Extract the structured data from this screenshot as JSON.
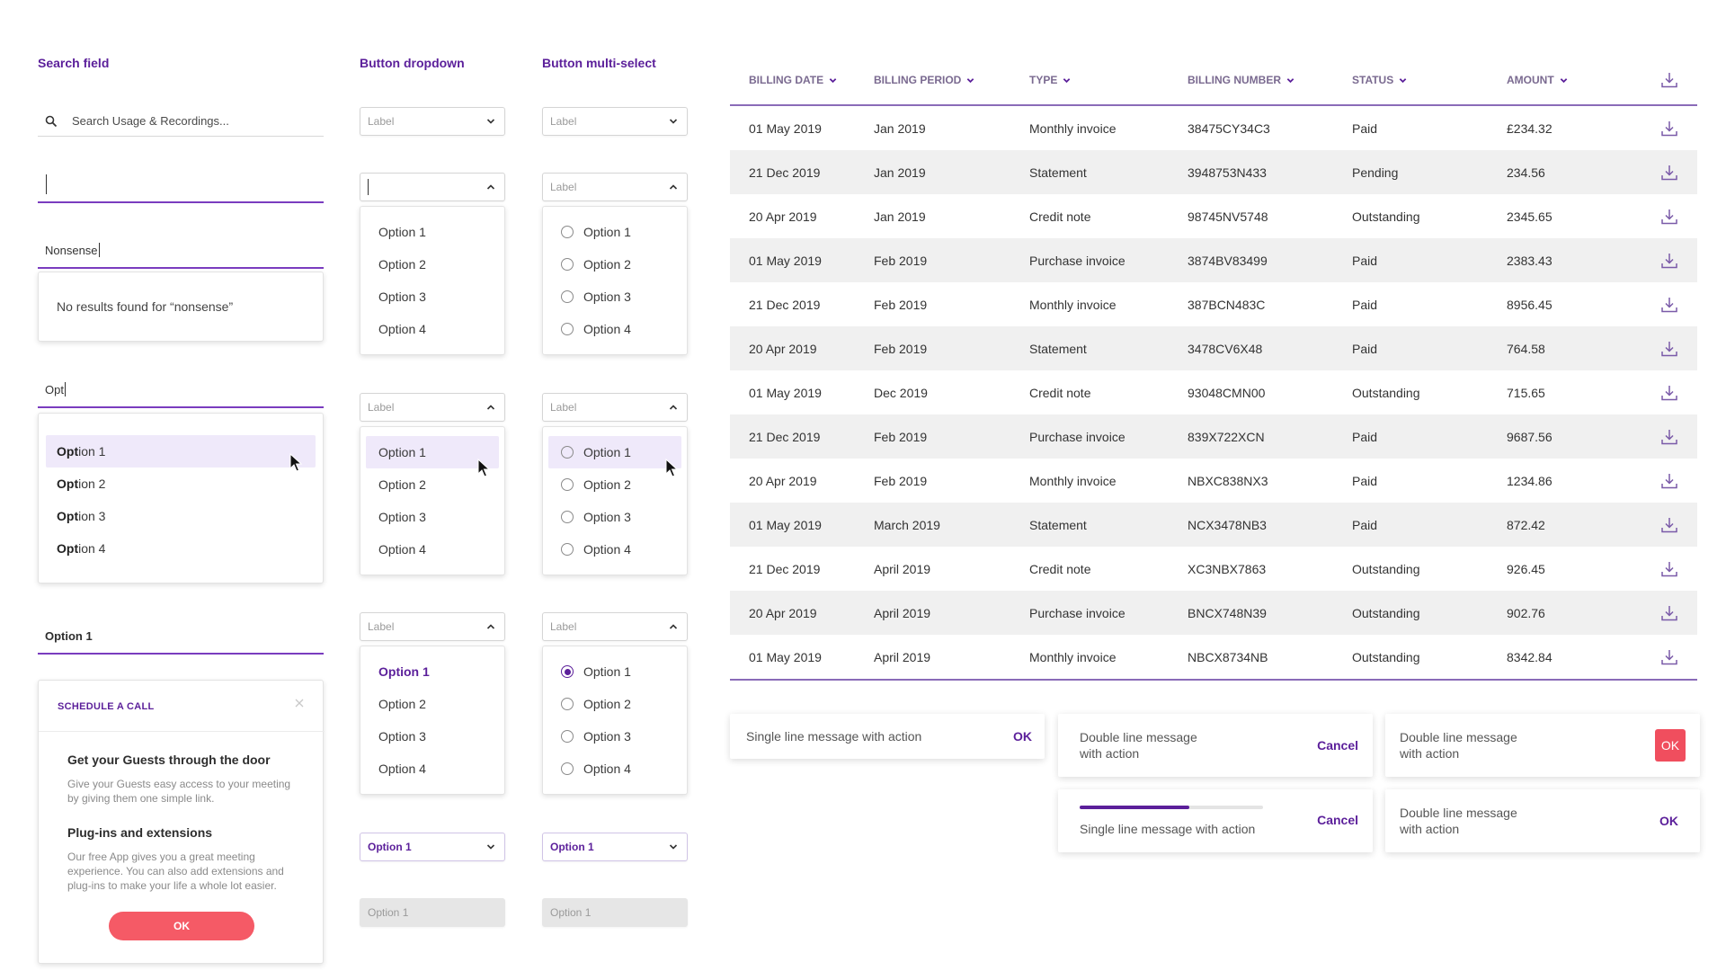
{
  "sections": {
    "search": "Search field",
    "dropdown": "Button dropdown",
    "multiselect": "Button multi-select"
  },
  "search": {
    "placeholder": "Search Usage & Recordings...",
    "typed_nonsense": "Nonsense",
    "no_results": "No results found for “nonsense”",
    "typed_opt": "Opt",
    "match_prefix": "Opt",
    "match_suffixes": [
      "ion 1",
      "ion 2",
      "ion 3",
      "ion 4"
    ],
    "selected": "Option 1"
  },
  "dropdown": {
    "label": "Label",
    "options": [
      "Option 1",
      "Option 2",
      "Option 3",
      "Option 4"
    ],
    "selected": "Option 1",
    "disabled": "Option 1"
  },
  "schedule": {
    "title": "SCHEDULE A CALL",
    "h1": "Get your Guests through the door",
    "p1": "Give your Guests easy access to your meeting by giving them one simple link.",
    "h2": "Plug-ins and extensions",
    "p2": "Our free App gives you a great meeting experience. You can also add extensions and plug-ins to make your life a whole lot easier.",
    "ok": "OK"
  },
  "table": {
    "headers": [
      "Billing date",
      "Billing period",
      "Type",
      "Billing number",
      "Status",
      "Amount"
    ],
    "rows": [
      [
        "01 May 2019",
        "Jan 2019",
        "Monthly invoice",
        "38475CY34C3",
        "Paid",
        "£234.32"
      ],
      [
        "21 Dec 2019",
        "Jan 2019",
        "Statement",
        "3948753N433",
        "Pending",
        "234.56"
      ],
      [
        "20 Apr 2019",
        "Jan 2019",
        "Credit note",
        "98745NV5748",
        "Outstanding",
        "2345.65"
      ],
      [
        "01 May 2019",
        "Feb 2019",
        "Purchase invoice",
        "3874BV83499",
        "Paid",
        "2383.43"
      ],
      [
        "21 Dec 2019",
        "Feb 2019",
        "Monthly invoice",
        "387BCN483C",
        "Paid",
        "8956.45"
      ],
      [
        "20 Apr 2019",
        "Feb 2019",
        "Statement",
        "3478CV6X48",
        "Paid",
        "764.58"
      ],
      [
        "01 May 2019",
        "Dec 2019",
        "Credit note",
        "93048CMN00",
        "Outstanding",
        "715.65"
      ],
      [
        "21 Dec 2019",
        "Feb 2019",
        "Purchase invoice",
        "839X722XCN",
        "Paid",
        "9687.56"
      ],
      [
        "20 Apr 2019",
        "Feb 2019",
        "Monthly invoice",
        "NBXC838NX3",
        "Paid",
        "1234.86"
      ],
      [
        "01 May 2019",
        "March 2019",
        "Statement",
        "NCX3478NB3",
        "Paid",
        "872.42"
      ],
      [
        "21 Dec 2019",
        "April 2019",
        "Credit note",
        "XC3NBX7863",
        "Outstanding",
        "926.45"
      ],
      [
        "20 Apr 2019",
        "April 2019",
        "Purchase invoice",
        "BNCX748N39",
        "Outstanding",
        "902.76"
      ],
      [
        "01 May 2019",
        "April 2019",
        "Monthly invoice",
        "NBCX8734NB",
        "Outstanding",
        "8342.84"
      ]
    ]
  },
  "toasts": {
    "single": "Single line message with action",
    "double_1": "Double line message",
    "double_2": "with action",
    "ok": "OK",
    "cancel": "Cancel",
    "progress": 0.6
  },
  "colors": {
    "accent": "#5b1f9a",
    "danger": "#f04e5e"
  }
}
